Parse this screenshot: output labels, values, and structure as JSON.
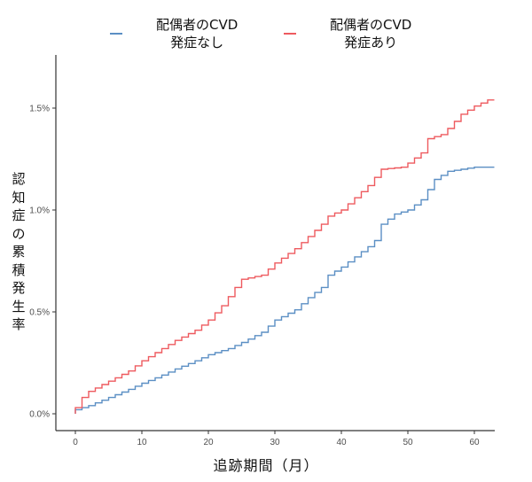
{
  "legend": {
    "items": [
      {
        "label": "配偶者のCVD\n発症なし",
        "color": "#5b8fc4"
      },
      {
        "label": "配偶者のCVD\n発症あり",
        "color": "#ee5a5f"
      }
    ]
  },
  "axes": {
    "ylabel": "認知症の累積発生率",
    "xlabel": "追跡期間（月）",
    "yticks": [
      "0.0%",
      "0.5%",
      "1.0%",
      "1.5%"
    ],
    "xticks": [
      "0",
      "10",
      "20",
      "30",
      "40",
      "50",
      "60"
    ]
  },
  "chart_data": {
    "type": "line",
    "subtype": "step (cumulative incidence)",
    "title": "",
    "xlabel": "追跡期間（月）",
    "ylabel": "認知症の累積発生率",
    "xlim": [
      -3,
      63
    ],
    "ylim": [
      -0.05,
      1.75
    ],
    "x_ticks": [
      0,
      10,
      20,
      30,
      40,
      50,
      60
    ],
    "y_ticks": [
      0.0,
      0.5,
      1.0,
      1.5
    ],
    "y_unit": "%",
    "grid": false,
    "legend_position": "top",
    "series": [
      {
        "name": "配偶者のCVD発症なし",
        "color": "#5b8fc4",
        "x": [
          0,
          2,
          5,
          8,
          10,
          13,
          15,
          18,
          20,
          23,
          25,
          28,
          30,
          33,
          35,
          37,
          38,
          40,
          42,
          44,
          45,
          46,
          48,
          50,
          52,
          53,
          54,
          56,
          60,
          63
        ],
        "y": [
          0.02,
          0.04,
          0.08,
          0.12,
          0.15,
          0.19,
          0.22,
          0.26,
          0.29,
          0.32,
          0.35,
          0.4,
          0.46,
          0.51,
          0.57,
          0.62,
          0.68,
          0.72,
          0.77,
          0.82,
          0.85,
          0.93,
          0.98,
          1.0,
          1.05,
          1.1,
          1.15,
          1.19,
          1.21,
          1.21
        ]
      },
      {
        "name": "配偶者のCVD発症あり",
        "color": "#ee5a5f",
        "x": [
          0,
          1,
          2,
          5,
          8,
          10,
          13,
          15,
          18,
          20,
          22,
          24,
          25,
          28,
          30,
          33,
          35,
          37,
          38,
          40,
          42,
          44,
          46,
          49,
          50,
          52,
          53,
          55,
          56,
          58,
          60,
          62,
          63
        ],
        "y": [
          0.03,
          0.08,
          0.11,
          0.16,
          0.21,
          0.26,
          0.32,
          0.36,
          0.41,
          0.46,
          0.53,
          0.62,
          0.66,
          0.68,
          0.74,
          0.81,
          0.87,
          0.93,
          0.97,
          1.0,
          1.06,
          1.12,
          1.2,
          1.21,
          1.23,
          1.28,
          1.35,
          1.37,
          1.4,
          1.47,
          1.51,
          1.54,
          1.54
        ]
      }
    ]
  }
}
